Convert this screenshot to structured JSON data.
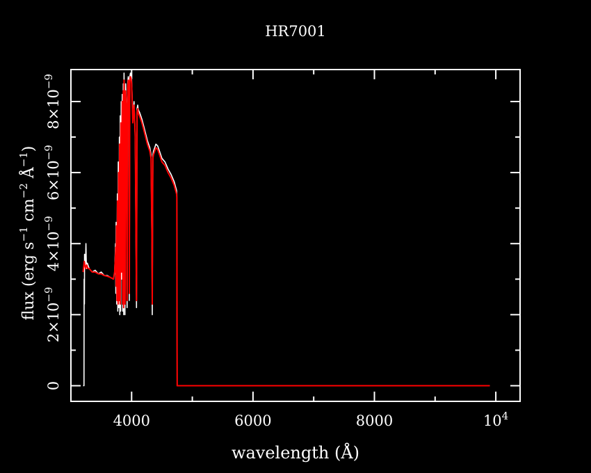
{
  "chart_data": {
    "type": "line",
    "title": "HR7001",
    "xlabel": "wavelength (Å)",
    "ylabel_parts": {
      "flux": "flux (erg s",
      "exp1": "−1",
      "cm": " cm",
      "exp2": "−2",
      "ang": " Å",
      "close": ")"
    },
    "xlim": [
      3000,
      10400
    ],
    "ylim": [
      -4.4e-10,
      8.9e-09
    ],
    "x_ticks": [
      {
        "value": 4000,
        "mantissa": "4000",
        "exponent": ""
      },
      {
        "value": 6000,
        "mantissa": "6000",
        "exponent": ""
      },
      {
        "value": 8000,
        "mantissa": "8000",
        "exponent": ""
      },
      {
        "value": 10000,
        "mantissa": "10",
        "exponent": "4"
      }
    ],
    "y_ticks": [
      {
        "value": 0,
        "mantissa": "0",
        "exponent": ""
      },
      {
        "value": 2e-09,
        "mantissa": "2×10",
        "exponent": "−9"
      },
      {
        "value": 4e-09,
        "mantissa": "4×10",
        "exponent": "−9"
      },
      {
        "value": 6e-09,
        "mantissa": "6×10",
        "exponent": "−9"
      },
      {
        "value": 8e-09,
        "mantissa": "8×10",
        "exponent": "−9"
      }
    ],
    "series": [
      {
        "color": "#ffffff",
        "x": [
          3200,
          3215,
          3218,
          3222,
          3225,
          3240,
          3248,
          3255,
          3270,
          3300,
          3350,
          3400,
          3450,
          3500,
          3550,
          3600,
          3650,
          3700,
          3720,
          3735,
          3740,
          3745,
          3755,
          3765,
          3772,
          3780,
          3790,
          3798,
          3805,
          3812,
          3820,
          3828,
          3835,
          3845,
          3855,
          3862,
          3870,
          3875,
          3882,
          3890,
          3900,
          3912,
          3925,
          3935,
          3945,
          3955,
          3962,
          3970,
          3980,
          3990,
          4000,
          4020,
          4040,
          4060,
          4080,
          4090,
          4095,
          4101,
          4107,
          4115,
          4130,
          4150,
          4170,
          4200,
          4230,
          4260,
          4300,
          4320,
          4335,
          4340,
          4345,
          4350,
          4360,
          4380,
          4400,
          4430,
          4460,
          4500,
          4550,
          4600,
          4650,
          4700,
          4740,
          4745,
          4750,
          4800,
          5000,
          6000,
          7000,
          8000,
          9000,
          9900
        ],
        "y": [
          0,
          0,
          3e-09,
          2.3e-09,
          3.7e-09,
          3.4e-09,
          4e-09,
          3.3e-09,
          3.45e-09,
          3.3e-09,
          3.2e-09,
          3.25e-09,
          3.15e-09,
          3.2e-09,
          3.1e-09,
          3.1e-09,
          3.05e-09,
          3e-09,
          3.2e-09,
          4e-09,
          2.6e-09,
          4.6e-09,
          2.3e-09,
          5.4e-09,
          2.1e-09,
          6.3e-09,
          2.2e-09,
          7e-09,
          2e-09,
          7.6e-09,
          2.1e-09,
          8e-09,
          3e-09,
          8.2e-09,
          2.1e-09,
          8.5e-09,
          2e-09,
          8.8e-09,
          7.4e-09,
          2e-09,
          8.5e-09,
          8e-09,
          2.2e-09,
          8.5e-09,
          8.7e-09,
          8.6e-09,
          2.4e-09,
          8.7e-09,
          8.8e-09,
          8.75e-09,
          8.6e-09,
          7.5e-09,
          8e-09,
          7e-09,
          2.2e-09,
          7.8e-09,
          7.85e-09,
          7.9e-09,
          7.8e-09,
          7.75e-09,
          7.7e-09,
          7.6e-09,
          7.5e-09,
          7.3e-09,
          7.1e-09,
          6.9e-09,
          6.7e-09,
          6.5e-09,
          4e-09,
          2e-09,
          4.5e-09,
          6.5e-09,
          6.6e-09,
          6.7e-09,
          6.8e-09,
          6.75e-09,
          6.6e-09,
          6.4e-09,
          6.3e-09,
          6.1e-09,
          5.95e-09,
          5.75e-09,
          5.5e-09,
          5.4e-09,
          0,
          0,
          0,
          0,
          0,
          0,
          0,
          0
        ]
      },
      {
        "color": "#ff0000",
        "x": [
          3200,
          3220,
          3240,
          3260,
          3280,
          3300,
          3350,
          3400,
          3450,
          3500,
          3550,
          3600,
          3650,
          3700,
          3720,
          3740,
          3745,
          3750,
          3760,
          3768,
          3778,
          3786,
          3795,
          3803,
          3812,
          3822,
          3835,
          3845,
          3855,
          3862,
          3870,
          3875,
          3885,
          3892,
          3900,
          3912,
          3925,
          3935,
          3945,
          3955,
          3962,
          3970,
          3980,
          3990,
          4000,
          4020,
          4040,
          4060,
          4080,
          4090,
          4095,
          4101,
          4107,
          4115,
          4130,
          4150,
          4170,
          4200,
          4230,
          4260,
          4300,
          4320,
          4335,
          4340,
          4345,
          4350,
          4360,
          4380,
          4400,
          4430,
          4460,
          4500,
          4550,
          4600,
          4650,
          4700,
          4740,
          4745,
          4750,
          4800,
          5000,
          6000,
          7000,
          8000,
          9000,
          9900
        ],
        "y": [
          3.2e-09,
          3.5e-09,
          3.3e-09,
          3.4e-09,
          3.3e-09,
          3.3e-09,
          3.2e-09,
          3.2e-09,
          3.15e-09,
          3.15e-09,
          3.1e-09,
          3.08e-09,
          3.05e-09,
          3e-09,
          3.2e-09,
          3.9e-09,
          2.8e-09,
          4.5e-09,
          2.4e-09,
          5.2e-09,
          2.3e-09,
          6e-09,
          2.4e-09,
          6.8e-09,
          2.3e-09,
          7.4e-09,
          3.2e-09,
          8e-09,
          2.3e-09,
          8.3e-09,
          2.2e-09,
          8.6e-09,
          7.3e-09,
          2.3e-09,
          8.3e-09,
          7.9e-09,
          2.4e-09,
          8.4e-09,
          8.6e-09,
          8.5e-09,
          2.6e-09,
          8.6e-09,
          8.7e-09,
          8.65e-09,
          8.5e-09,
          7.4e-09,
          7.9e-09,
          7e-09,
          2.4e-09,
          7.7e-09,
          7.75e-09,
          7.8e-09,
          7.7e-09,
          7.65e-09,
          7.6e-09,
          7.5e-09,
          7.4e-09,
          7.2e-09,
          7e-09,
          6.8e-09,
          6.6e-09,
          6.4e-09,
          4.2e-09,
          2.3e-09,
          4.6e-09,
          6.4e-09,
          6.5e-09,
          6.6e-09,
          6.7e-09,
          6.65e-09,
          6.5e-09,
          6.3e-09,
          6.2e-09,
          6e-09,
          5.85e-09,
          5.65e-09,
          5.4e-09,
          5.3e-09,
          0,
          0,
          0,
          0,
          0,
          0,
          0,
          0
        ]
      }
    ]
  }
}
